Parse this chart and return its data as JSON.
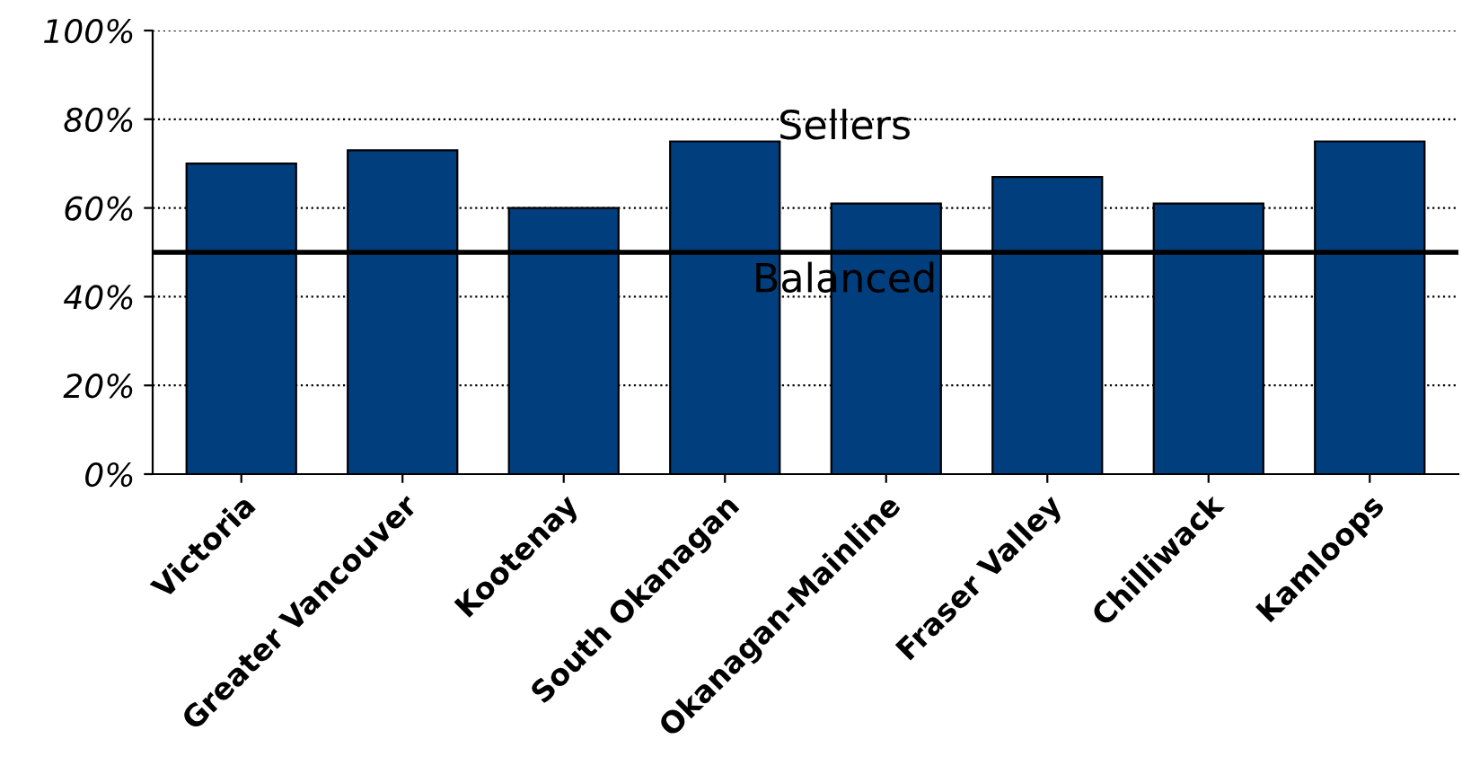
{
  "chart_data": {
    "type": "bar",
    "categories": [
      "Victoria",
      "Greater Vancouver",
      "Kootenay",
      "South Okanagan",
      "Okanagan-Mainline",
      "Fraser Valley",
      "Chilliwack",
      "Kamloops"
    ],
    "values": [
      70,
      73,
      60,
      75,
      61,
      67,
      61,
      75
    ],
    "color": "#003e7e",
    "ylim": [
      0,
      100
    ],
    "yticks": [
      {
        "value": 0,
        "label": "0%"
      },
      {
        "value": 20,
        "label": "20%"
      },
      {
        "value": 40,
        "label": "40%"
      },
      {
        "value": 60,
        "label": "60%"
      },
      {
        "value": 80,
        "label": "80%"
      },
      {
        "value": 100,
        "label": "100%"
      }
    ],
    "grid": "y",
    "ref_lines": [
      {
        "axis": "y",
        "value": 50,
        "color": "#000000",
        "line_style": "solid"
      }
    ],
    "annotations": [
      "Sellers",
      "Balanced"
    ]
  }
}
